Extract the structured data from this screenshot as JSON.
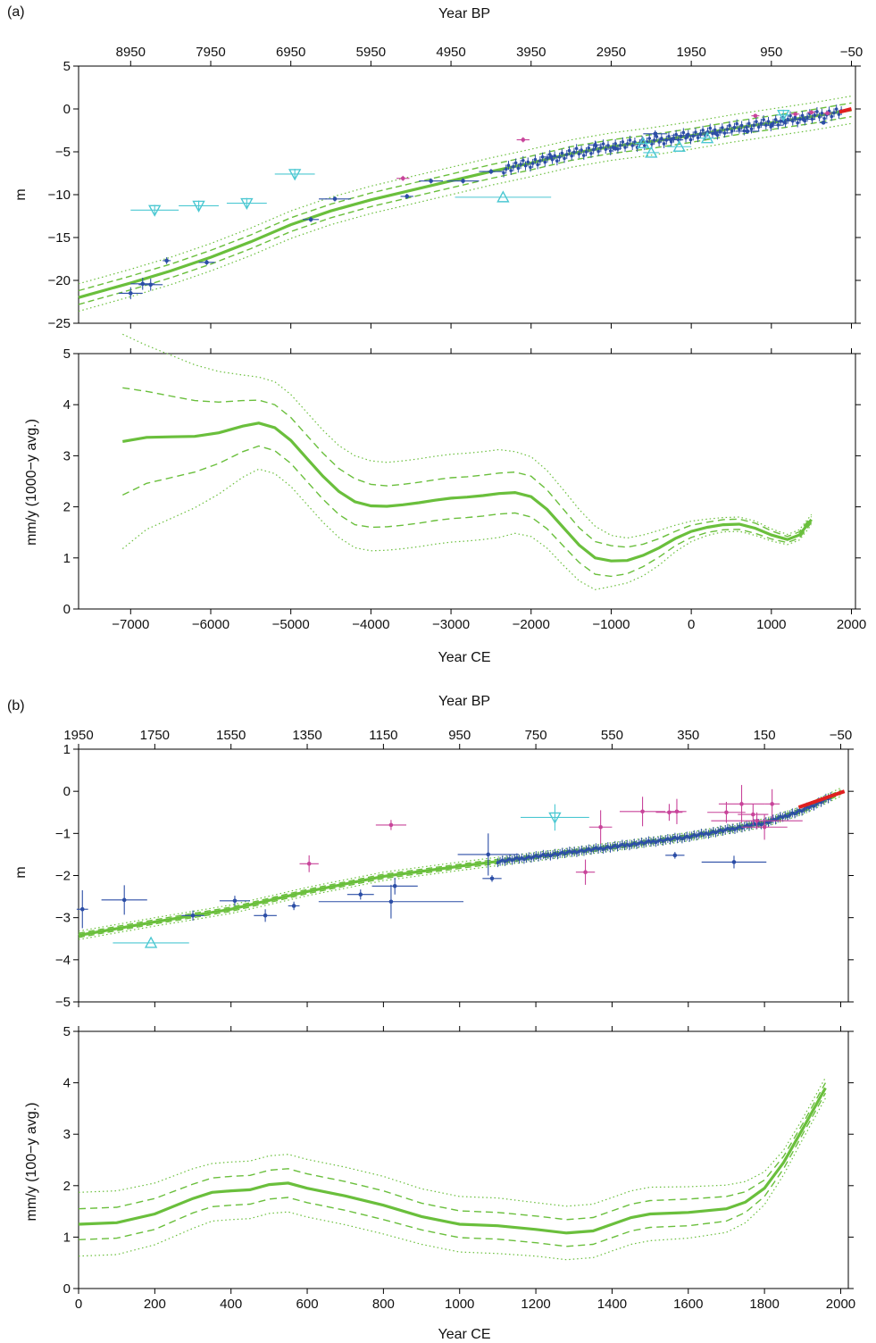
{
  "figure": {
    "colors": {
      "green": "#6abf3c",
      "blue": "#2c4ea6",
      "magenta": "#c8449a",
      "red": "#e02020",
      "cyan": "#4cc8d2"
    }
  },
  "chart_data": [
    {
      "panel_label": "(a)",
      "top": {
        "type": "scatter",
        "xlabel": "Year CE",
        "xlabel_top": "Year BP",
        "ylabel": "m",
        "xlim": [
          -7650,
          2050
        ],
        "ylim": [
          -25,
          5
        ],
        "yticks": [
          5,
          0,
          -5,
          -10,
          -15,
          -20,
          -25
        ],
        "yticklabels": [
          "5",
          "0",
          "−5",
          "−10",
          "−15",
          "−20",
          "−25"
        ],
        "top_ticks_ce": [
          -7000,
          -6000,
          -5000,
          -4000,
          -3000,
          -2000,
          -1000,
          0,
          1000,
          2000
        ],
        "top_ticklabels": [
          "8950",
          "7950",
          "6950",
          "5950",
          "4950",
          "3950",
          "2950",
          "1950",
          "950",
          "−50"
        ],
        "curve": {
          "x": [
            -7650,
            -7000,
            -6500,
            -6000,
            -5500,
            -5000,
            -4500,
            -4000,
            -3500,
            -3000,
            -2500,
            -2000,
            -1500,
            -1000,
            -500,
            0,
            500,
            1000,
            1500,
            2000
          ],
          "y": [
            -22,
            -20.3,
            -18.9,
            -17.3,
            -15.5,
            -13.5,
            -11.9,
            -10.6,
            -9.5,
            -8.4,
            -7.3,
            -6.3,
            -5.2,
            -4.4,
            -3.8,
            -3.1,
            -2.3,
            -1.6,
            -0.9,
            -0.1
          ],
          "band1": 0.8,
          "band2": 1.6
        },
        "points": [
          {
            "x": -7000,
            "y": -21.5,
            "xe": 150,
            "ye": 0.7,
            "c": "blue"
          },
          {
            "x": -6850,
            "y": -20.4,
            "xe": 150,
            "ye": 0.7,
            "c": "blue"
          },
          {
            "x": -6750,
            "y": -20.5,
            "xe": 150,
            "ye": 0.7,
            "c": "blue"
          },
          {
            "x": -6550,
            "y": -17.7,
            "xe": 50,
            "ye": 0.4,
            "c": "blue"
          },
          {
            "x": -6050,
            "y": -17.9,
            "xe": 100,
            "ye": 0.3,
            "c": "blue"
          },
          {
            "x": -4750,
            "y": -12.9,
            "xe": 100,
            "ye": 0.3,
            "c": "blue"
          },
          {
            "x": -4450,
            "y": -10.5,
            "xe": 200,
            "ye": 0.3,
            "c": "blue"
          },
          {
            "x": -3550,
            "y": -10.2,
            "xe": 80,
            "ye": 0.3,
            "c": "blue"
          },
          {
            "x": -3250,
            "y": -8.4,
            "xe": 150,
            "ye": 0.3,
            "c": "blue"
          },
          {
            "x": -2850,
            "y": -8.4,
            "xe": 200,
            "ye": 0.3,
            "c": "blue"
          },
          {
            "x": -2500,
            "y": -7.3,
            "xe": 150,
            "ye": 0.3,
            "c": "blue"
          },
          {
            "x": -1750,
            "y": -5.6,
            "xe": 120,
            "ye": 0.3,
            "c": "blue"
          },
          {
            "x": -1200,
            "y": -4.2,
            "xe": 80,
            "ye": 0.5,
            "c": "blue"
          },
          {
            "x": -950,
            "y": -4.6,
            "xe": 80,
            "ye": 0.3,
            "c": "blue"
          },
          {
            "x": -450,
            "y": -2.9,
            "xe": 150,
            "ye": 0.4,
            "c": "blue"
          },
          {
            "x": -250,
            "y": -3.6,
            "xe": 150,
            "ye": 0.3,
            "c": "blue"
          },
          {
            "x": -50,
            "y": -3.1,
            "xe": 200,
            "ye": 0.3,
            "c": "blue"
          },
          {
            "x": 300,
            "y": -2.8,
            "xe": 200,
            "ye": 0.3,
            "c": "blue"
          },
          {
            "x": 700,
            "y": -2.6,
            "xe": 150,
            "ye": 0.3,
            "c": "blue"
          },
          {
            "x": 1000,
            "y": -1.9,
            "xe": 150,
            "ye": 0.3,
            "c": "blue"
          },
          {
            "x": 1150,
            "y": -1.4,
            "xe": 100,
            "ye": 0.5,
            "c": "blue"
          },
          {
            "x": 1400,
            "y": -1.2,
            "xe": 150,
            "ye": 0.3,
            "c": "blue"
          },
          {
            "x": 1650,
            "y": -1.6,
            "xe": 50,
            "ye": 0.2,
            "c": "blue"
          },
          {
            "x": -3600,
            "y": -8.1,
            "xe": 80,
            "ye": 0.3,
            "c": "magenta"
          },
          {
            "x": -2100,
            "y": -3.6,
            "xe": 80,
            "ye": 0.3,
            "c": "magenta"
          },
          {
            "x": 800,
            "y": -0.8,
            "xe": 50,
            "ye": 0.2,
            "c": "magenta"
          },
          {
            "x": 1300,
            "y": -0.6,
            "xe": 50,
            "ye": 0.2,
            "c": "magenta"
          },
          {
            "x": 1500,
            "y": -0.4,
            "xe": 50,
            "ye": 0.2,
            "c": "magenta"
          },
          {
            "x": 1700,
            "y": -0.5,
            "xe": 50,
            "ye": 0.2,
            "c": "magenta"
          }
        ],
        "cyan_down": [
          {
            "x": -6700,
            "y": -11.8,
            "xe": 300,
            "ye": 0.3
          },
          {
            "x": -6150,
            "y": -11.3,
            "xe": 250,
            "ye": 0.3
          },
          {
            "x": -5550,
            "y": -11.0,
            "xe": 250,
            "ye": 0.3
          },
          {
            "x": -4950,
            "y": -7.6,
            "xe": 250,
            "ye": 0.3
          },
          {
            "x": 1150,
            "y": -0.7,
            "xe": 80,
            "ye": 0.3
          }
        ],
        "cyan_up": [
          {
            "x": -2350,
            "y": -10.3,
            "xe": 600,
            "ye": 0.3
          },
          {
            "x": -600,
            "y": -4.0,
            "xe": 100,
            "ye": 0.3
          },
          {
            "x": -500,
            "y": -5.1,
            "xe": 100,
            "ye": 0.3
          },
          {
            "x": -150,
            "y": -4.4,
            "xe": 150,
            "ye": 0.3
          },
          {
            "x": 200,
            "y": -3.4,
            "xe": 100,
            "ye": 0.3
          }
        ],
        "red_segment": {
          "x": [
            1850,
            2000
          ],
          "y": [
            -0.35,
            0.0
          ]
        }
      },
      "bottom": {
        "type": "line",
        "xlabel": "Year CE",
        "ylabel": "mm/y (1000−y avg.)",
        "xlim": [
          -7650,
          2050
        ],
        "ylim": [
          0,
          5
        ],
        "xticks": [
          -7000,
          -6000,
          -5000,
          -4000,
          -3000,
          -2000,
          -1000,
          0,
          1000,
          2000
        ],
        "xticklabels": [
          "−7000",
          "−6000",
          "−5000",
          "−4000",
          "−3000",
          "−2000",
          "−1000",
          "0",
          "1000",
          "2000"
        ],
        "yticks": [
          0,
          1,
          2,
          3,
          4,
          5
        ],
        "yticklabels": [
          "0",
          "1",
          "2",
          "3",
          "4",
          "5"
        ],
        "x": [
          -7100,
          -6800,
          -6500,
          -6200,
          -5900,
          -5600,
          -5400,
          -5200,
          -5000,
          -4800,
          -4600,
          -4400,
          -4200,
          -4000,
          -3800,
          -3600,
          -3400,
          -3200,
          -3000,
          -2800,
          -2600,
          -2400,
          -2200,
          -2000,
          -1800,
          -1600,
          -1400,
          -1200,
          -1000,
          -800,
          -600,
          -400,
          -200,
          0,
          200,
          400,
          600,
          800,
          1000,
          1200,
          1350,
          1500
        ],
        "mean": [
          3.28,
          3.36,
          3.37,
          3.38,
          3.45,
          3.58,
          3.64,
          3.55,
          3.3,
          2.95,
          2.6,
          2.3,
          2.1,
          2.02,
          2.01,
          2.04,
          2.08,
          2.13,
          2.17,
          2.19,
          2.22,
          2.26,
          2.28,
          2.2,
          1.95,
          1.6,
          1.25,
          1.0,
          0.94,
          0.95,
          1.05,
          1.2,
          1.38,
          1.52,
          1.6,
          1.65,
          1.66,
          1.58,
          1.45,
          1.36,
          1.45,
          1.75
        ],
        "dash_offset": [
          1.05,
          0.9,
          0.8,
          0.7,
          0.6,
          0.5,
          0.45,
          0.45,
          0.45,
          0.45,
          0.45,
          0.45,
          0.45,
          0.42,
          0.4,
          0.4,
          0.4,
          0.4,
          0.4,
          0.4,
          0.4,
          0.4,
          0.4,
          0.4,
          0.38,
          0.36,
          0.34,
          0.32,
          0.3,
          0.26,
          0.22,
          0.18,
          0.14,
          0.12,
          0.1,
          0.1,
          0.1,
          0.1,
          0.08,
          0.06,
          0.06,
          0.06
        ],
        "dot_offset": [
          2.1,
          1.8,
          1.6,
          1.4,
          1.2,
          1.0,
          0.9,
          0.9,
          0.9,
          0.9,
          0.9,
          0.9,
          0.9,
          0.88,
          0.86,
          0.86,
          0.86,
          0.86,
          0.86,
          0.86,
          0.86,
          0.86,
          0.8,
          0.78,
          0.76,
          0.74,
          0.7,
          0.62,
          0.5,
          0.44,
          0.4,
          0.34,
          0.26,
          0.2,
          0.16,
          0.14,
          0.14,
          0.14,
          0.12,
          0.1,
          0.1,
          0.1
        ]
      }
    },
    {
      "panel_label": "(b)",
      "top": {
        "type": "scatter",
        "xlabel": "Year CE",
        "xlabel_top": "Year BP",
        "ylabel": "m",
        "xlim": [
          0,
          2020
        ],
        "ylim": [
          -5,
          1
        ],
        "yticks": [
          1,
          0,
          -1,
          -2,
          -3,
          -4,
          -5
        ],
        "yticklabels": [
          "1",
          "0",
          "−1",
          "−2",
          "−3",
          "−4",
          "−5"
        ],
        "top_ticks_ce": [
          0,
          200,
          400,
          600,
          800,
          1000,
          1200,
          1400,
          1600,
          1800,
          2000
        ],
        "top_ticklabels": [
          "1950",
          "1750",
          "1550",
          "1350",
          "1150",
          "950",
          "750",
          "550",
          "350",
          "150",
          "−50"
        ],
        "curve": {
          "x": [
            0,
            200,
            400,
            600,
            800,
            1000,
            1200,
            1400,
            1600,
            1800,
            1900,
            2000
          ],
          "y": [
            -3.42,
            -3.1,
            -2.8,
            -2.38,
            -2.02,
            -1.78,
            -1.55,
            -1.32,
            -1.08,
            -0.75,
            -0.45,
            -0.02
          ],
          "band1": 0.05,
          "band2": 0.1
        },
        "points": [
          {
            "x": 10,
            "y": -2.8,
            "xe": 15,
            "ye": 0.45,
            "c": "blue"
          },
          {
            "x": 120,
            "y": -2.58,
            "xe": 60,
            "ye": 0.35,
            "c": "blue"
          },
          {
            "x": 300,
            "y": -2.95,
            "xe": 30,
            "ye": 0.12,
            "c": "blue"
          },
          {
            "x": 410,
            "y": -2.6,
            "xe": 40,
            "ye": 0.12,
            "c": "blue"
          },
          {
            "x": 490,
            "y": -2.95,
            "xe": 30,
            "ye": 0.15,
            "c": "blue"
          },
          {
            "x": 565,
            "y": -2.72,
            "xe": 15,
            "ye": 0.1,
            "c": "blue"
          },
          {
            "x": 740,
            "y": -2.45,
            "xe": 35,
            "ye": 0.12,
            "c": "blue"
          },
          {
            "x": 820,
            "y": -2.62,
            "xe": 190,
            "ye": 0.4,
            "c": "blue"
          },
          {
            "x": 830,
            "y": -2.25,
            "xe": 60,
            "ye": 0.2,
            "c": "blue"
          },
          {
            "x": 1075,
            "y": -1.5,
            "xe": 80,
            "ye": 0.5,
            "c": "blue"
          },
          {
            "x": 1085,
            "y": -2.07,
            "xe": 25,
            "ye": 0.08,
            "c": "blue"
          },
          {
            "x": 1565,
            "y": -1.52,
            "xe": 25,
            "ye": 0.08,
            "c": "blue"
          },
          {
            "x": 1720,
            "y": -1.68,
            "xe": 85,
            "ye": 0.15,
            "c": "blue"
          },
          {
            "x": 605,
            "y": -1.72,
            "xe": 25,
            "ye": 0.2,
            "c": "magenta"
          },
          {
            "x": 820,
            "y": -0.8,
            "xe": 40,
            "ye": 0.12,
            "c": "magenta"
          },
          {
            "x": 1330,
            "y": -1.92,
            "xe": 25,
            "ye": 0.3,
            "c": "magenta"
          },
          {
            "x": 1370,
            "y": -0.85,
            "xe": 30,
            "ye": 0.4,
            "c": "magenta"
          },
          {
            "x": 1480,
            "y": -0.48,
            "xe": 60,
            "ye": 0.35,
            "c": "magenta"
          },
          {
            "x": 1550,
            "y": -0.5,
            "xe": 35,
            "ye": 0.2,
            "c": "magenta"
          },
          {
            "x": 1570,
            "y": -0.48,
            "xe": 25,
            "ye": 0.3,
            "c": "magenta"
          },
          {
            "x": 1700,
            "y": -0.5,
            "xe": 50,
            "ye": 0.25,
            "c": "magenta"
          },
          {
            "x": 1740,
            "y": -0.3,
            "xe": 60,
            "ye": 0.45,
            "c": "magenta"
          },
          {
            "x": 1770,
            "y": -0.55,
            "xe": 40,
            "ye": 0.25,
            "c": "magenta"
          },
          {
            "x": 1780,
            "y": -0.7,
            "xe": 120,
            "ye": 0.2,
            "c": "magenta"
          },
          {
            "x": 1800,
            "y": -0.85,
            "xe": 60,
            "ye": 0.3,
            "c": "magenta"
          },
          {
            "x": 1820,
            "y": -0.3,
            "xe": 20,
            "ye": 0.35,
            "c": "magenta"
          }
        ],
        "cyan_down": [
          {
            "x": 1250,
            "y": -0.62,
            "xe": 90,
            "ye": 0.25
          }
        ],
        "cyan_up": [
          {
            "x": 190,
            "y": -3.6,
            "xe": 100,
            "ye": 0.1
          }
        ],
        "red_segment": {
          "x": [
            1890,
            2010
          ],
          "y": [
            -0.38,
            0.0
          ]
        }
      },
      "bottom": {
        "type": "line",
        "xlabel": "Year CE",
        "ylabel": "mm/y (100−y avg.)",
        "xlim": [
          0,
          2020
        ],
        "ylim": [
          0,
          5
        ],
        "xticks": [
          0,
          200,
          400,
          600,
          800,
          1000,
          1200,
          1400,
          1600,
          1800,
          2000
        ],
        "xticklabels": [
          "0",
          "200",
          "400",
          "600",
          "800",
          "1000",
          "1200",
          "1400",
          "1600",
          "1800",
          "2000"
        ],
        "yticks": [
          0,
          1,
          2,
          3,
          4,
          5
        ],
        "yticklabels": [
          "0",
          "1",
          "2",
          "3",
          "4",
          "5"
        ],
        "x": [
          0,
          100,
          200,
          300,
          350,
          400,
          450,
          500,
          550,
          600,
          700,
          800,
          900,
          1000,
          1100,
          1200,
          1280,
          1350,
          1450,
          1500,
          1600,
          1700,
          1750,
          1800,
          1850,
          1900,
          1960
        ],
        "mean": [
          1.25,
          1.28,
          1.45,
          1.75,
          1.87,
          1.9,
          1.92,
          2.02,
          2.05,
          1.95,
          1.8,
          1.62,
          1.4,
          1.25,
          1.22,
          1.15,
          1.08,
          1.12,
          1.38,
          1.45,
          1.48,
          1.55,
          1.68,
          1.95,
          2.45,
          3.1,
          3.9
        ],
        "dash_offset": [
          0.3,
          0.3,
          0.3,
          0.28,
          0.28,
          0.28,
          0.28,
          0.28,
          0.28,
          0.28,
          0.28,
          0.28,
          0.26,
          0.26,
          0.26,
          0.26,
          0.26,
          0.26,
          0.26,
          0.26,
          0.26,
          0.24,
          0.2,
          0.16,
          0.12,
          0.1,
          0.1
        ],
        "dot_offset": [
          0.62,
          0.62,
          0.6,
          0.58,
          0.56,
          0.56,
          0.56,
          0.56,
          0.56,
          0.56,
          0.56,
          0.56,
          0.54,
          0.54,
          0.54,
          0.52,
          0.52,
          0.52,
          0.52,
          0.52,
          0.5,
          0.46,
          0.4,
          0.32,
          0.24,
          0.2,
          0.2
        ]
      }
    }
  ]
}
